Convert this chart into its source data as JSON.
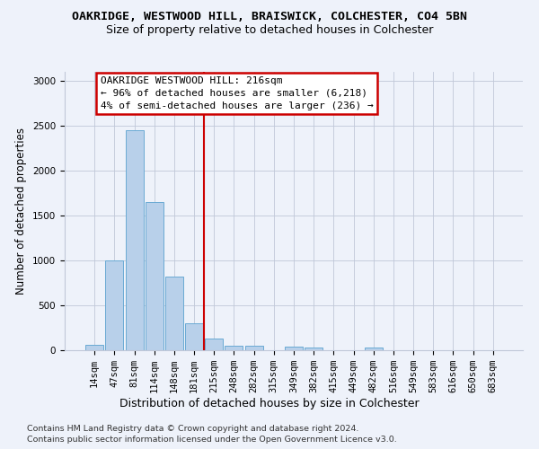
{
  "title": "OAKRIDGE, WESTWOOD HILL, BRAISWICK, COLCHESTER, CO4 5BN",
  "subtitle": "Size of property relative to detached houses in Colchester",
  "xlabel": "Distribution of detached houses by size in Colchester",
  "ylabel": "Number of detached properties",
  "categories": [
    "14sqm",
    "47sqm",
    "81sqm",
    "114sqm",
    "148sqm",
    "181sqm",
    "215sqm",
    "248sqm",
    "282sqm",
    "315sqm",
    "349sqm",
    "382sqm",
    "415sqm",
    "449sqm",
    "482sqm",
    "516sqm",
    "549sqm",
    "583sqm",
    "616sqm",
    "650sqm",
    "683sqm"
  ],
  "values": [
    60,
    1000,
    2450,
    1650,
    820,
    300,
    130,
    55,
    50,
    0,
    45,
    30,
    0,
    0,
    30,
    0,
    0,
    0,
    0,
    0,
    0
  ],
  "bar_color": "#b8d0ea",
  "bar_edge_color": "#6aaad4",
  "bg_color": "#eef2fa",
  "vline_x_index": 6,
  "vline_color": "#cc0000",
  "annotation_text": "OAKRIDGE WESTWOOD HILL: 216sqm\n← 96% of detached houses are smaller (6,218)\n4% of semi-detached houses are larger (236) →",
  "annotation_box_color": "#cc0000",
  "annotation_text_color": "#000000",
  "footer_line1": "Contains HM Land Registry data © Crown copyright and database right 2024.",
  "footer_line2": "Contains public sector information licensed under the Open Government Licence v3.0.",
  "ylim": [
    0,
    3100
  ],
  "yticks": [
    0,
    500,
    1000,
    1500,
    2000,
    2500,
    3000
  ],
  "title_fontsize": 9.5,
  "subtitle_fontsize": 9,
  "axis_label_fontsize": 8.5,
  "tick_fontsize": 7.5,
  "footer_fontsize": 6.8,
  "annotation_fontsize": 8
}
